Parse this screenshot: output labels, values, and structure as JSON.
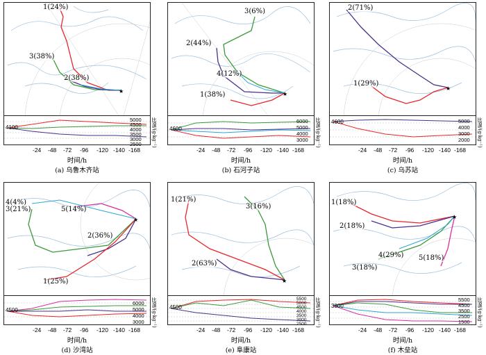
{
  "common": {
    "x_label": "时间/h",
    "y_label": "比湿/(g·kg⁻¹)",
    "x_ticks": [
      "-24",
      "-48",
      "-72",
      "-96",
      "-120",
      "-140",
      "-168"
    ]
  },
  "panels": [
    {
      "caption": "(a) 乌鲁木齐站",
      "start_value": "4100",
      "y_ticks": [
        "5000",
        "4500",
        "4000",
        "3500",
        "3000",
        "2500"
      ],
      "labels": [
        {
          "text": "1(24%)",
          "color": "#e8252a"
        },
        {
          "text": "3(38%)",
          "color": "#3a9a3a"
        },
        {
          "text": "2(38%)",
          "color": "#4b2f8c"
        }
      ]
    },
    {
      "caption": "(b) 石河子站",
      "start_value": "4600",
      "y_ticks": [
        "6000",
        "5000",
        "4000",
        "3000"
      ],
      "labels": [
        {
          "text": "3(6%)",
          "color": "#3a9a3a"
        },
        {
          "text": "2(44%)",
          "color": "#4b2f8c"
        },
        {
          "text": "4(12%)",
          "color": "#2aa7d6"
        },
        {
          "text": "1(38%)",
          "color": "#e8252a"
        }
      ]
    },
    {
      "caption": "(c) 乌苏站",
      "start_value": "4600",
      "y_ticks": [
        "5000",
        "4000",
        "3000",
        "2000"
      ],
      "labels": [
        {
          "text": "2(71%)",
          "color": "#4b2f8c"
        },
        {
          "text": "1(29%)",
          "color": "#e8252a"
        }
      ]
    },
    {
      "caption": "(d) 沙湾站",
      "start_value": "4500",
      "y_ticks": [
        "6000",
        "5000",
        "4000",
        "3000"
      ],
      "labels": [
        {
          "text": "4(4%)",
          "color": "#2aa7d6"
        },
        {
          "text": "3(21%)",
          "color": "#3a9a3a"
        },
        {
          "text": "5(14%)",
          "color": "#d62ca0"
        },
        {
          "text": "2(36%)",
          "color": "#4b2f8c"
        },
        {
          "text": "1(25%)",
          "color": "#e8252a"
        }
      ]
    },
    {
      "caption": "(e) 阜康站",
      "start_value": "4500",
      "y_ticks": [
        "5500",
        "5000",
        "4500",
        "4000",
        "3500",
        "3000",
        "2500"
      ],
      "labels": [
        {
          "text": "1(21%)",
          "color": "#e8252a"
        },
        {
          "text": "3(16%)",
          "color": "#3a9a3a"
        },
        {
          "text": "2(63%)",
          "color": "#4b2f8c"
        }
      ]
    },
    {
      "caption": "(f) 木垒站",
      "start_value": "3800",
      "y_ticks": [
        "5500",
        "4500",
        "3500",
        "2500",
        "1500"
      ],
      "labels": [
        {
          "text": "1(18%)",
          "color": "#e8252a"
        },
        {
          "text": "2(18%)",
          "color": "#4b2f8c"
        },
        {
          "text": "4(29%)",
          "color": "#3a9a3a"
        },
        {
          "text": "5(18%)",
          "color": "#d62ca0"
        },
        {
          "text": "3(18%)",
          "color": "#3a9a3a"
        }
      ]
    }
  ]
}
